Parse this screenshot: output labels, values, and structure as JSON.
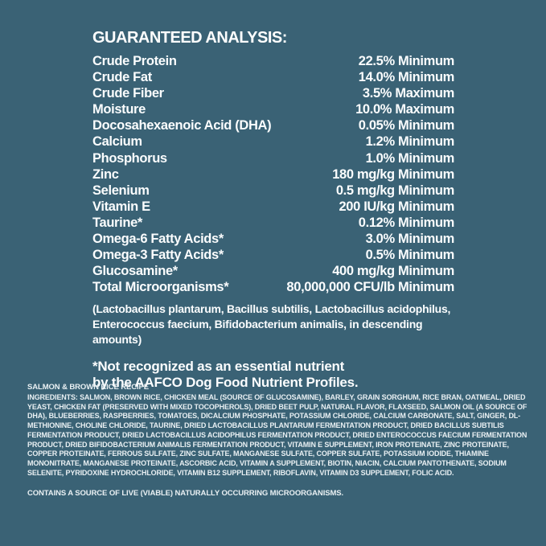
{
  "theme": {
    "background_color": "#3a6275",
    "primary_text_color": "#fbfdfe",
    "secondary_text_color": "#e9f0f3"
  },
  "guaranteed_analysis": {
    "title": "GUARANTEED ANALYSIS:",
    "rows": [
      {
        "nutrient": "Crude Protein",
        "value": "22.5% Minimum"
      },
      {
        "nutrient": "Crude Fat",
        "value": "14.0% Minimum"
      },
      {
        "nutrient": "Crude Fiber",
        "value": "3.5% Maximum"
      },
      {
        "nutrient": "Moisture",
        "value": "10.0% Maximum"
      },
      {
        "nutrient": "Docosahexaenoic Acid (DHA)",
        "value": "0.05% Minimum"
      },
      {
        "nutrient": "Calcium",
        "value": "1.2% Minimum"
      },
      {
        "nutrient": "Phosphorus",
        "value": "1.0% Minimum"
      },
      {
        "nutrient": "Zinc",
        "value": "180 mg/kg Minimum"
      },
      {
        "nutrient": "Selenium",
        "value": "0.5 mg/kg Minimum"
      },
      {
        "nutrient": "Vitamin E",
        "value": "200 IU/kg Minimum"
      },
      {
        "nutrient": "Taurine*",
        "value": "0.12% Minimum"
      },
      {
        "nutrient": "Omega-6 Fatty Acids*",
        "value": "3.0% Minimum"
      },
      {
        "nutrient": "Omega-3 Fatty Acids*",
        "value": "0.5% Minimum"
      },
      {
        "nutrient": "Glucosamine*",
        "value": "400 mg/kg Minimum"
      },
      {
        "nutrient": "Total Microorganisms*",
        "value": "80,000,000 CFU/lb Minimum"
      }
    ],
    "species_note": {
      "line1": "(Lactobacillus plantarum, Bacillus subtilis, Lactobacillus acidophilus,",
      "line2": "Enterococcus faecium, Bifidobacterium animalis, in descending amounts)"
    },
    "footnote": {
      "line1": "*Not recognized as an essential nutrient",
      "line2": "by the AAFCO Dog Food Nutrient Profiles."
    }
  },
  "ingredients_section": {
    "recipe_title": "SALMON & BROWN RICE RECIPE",
    "label": "INGREDIENTS:",
    "text": "SALMON, BROWN RICE, CHICKEN MEAL (SOURCE OF GLUCOSAMINE), BARLEY, GRAIN SORGHUM, RICE BRAN, OATMEAL, DRIED YEAST, CHICKEN FAT (PRESERVED WITH MIXED TOCOPHEROLS), DRIED BEET PULP, NATURAL FLAVOR, FLAXSEED, SALMON OIL (A SOURCE OF DHA), BLUEBERRIES, RASPBERRIES, TOMATOES, DICALCIUM PHOSPHATE, POTASSIUM CHLORIDE, CALCIUM CARBONATE, SALT, GINGER, DL-METHIONINE, CHOLINE CHLORIDE, TAURINE, DRIED LACTOBACILLUS PLANTARUM FERMENTATION PRODUCT, DRIED BACILLUS SUBTILIS FERMENTATION PRODUCT, DRIED LACTOBACILLUS ACIDOPHILUS FERMENTATION PRODUCT, DRIED ENTEROCOCCUS FAECIUM FERMENTATION PRODUCT, DRIED BIFIDOBACTERIUM ANIMALIS FERMENTATION PRODUCT, VITAMIN E SUPPLEMENT, IRON PROTEINATE, ZINC PROTEINATE, COPPER PROTEINATE, FERROUS SULFATE, ZINC SULFATE, MANGANESE SULFATE, COPPER SULFATE, POTASSIUM IODIDE, THIAMINE MONONITRATE, MANGANESE PROTEINATE, ASCORBIC ACID, VITAMIN A SUPPLEMENT, BIOTIN, NIACIN, CALCIUM PANTOTHENATE, SODIUM SELENITE, PYRIDOXINE HYDROCHLORIDE, VITAMIN B12 SUPPLEMENT, RIBOFLAVIN, VITAMIN D3 SUPPLEMENT, FOLIC ACID.",
    "contains_statement": "CONTAINS A SOURCE OF LIVE (VIABLE) NATURALLY OCCURRING MICROORGANISMS."
  }
}
